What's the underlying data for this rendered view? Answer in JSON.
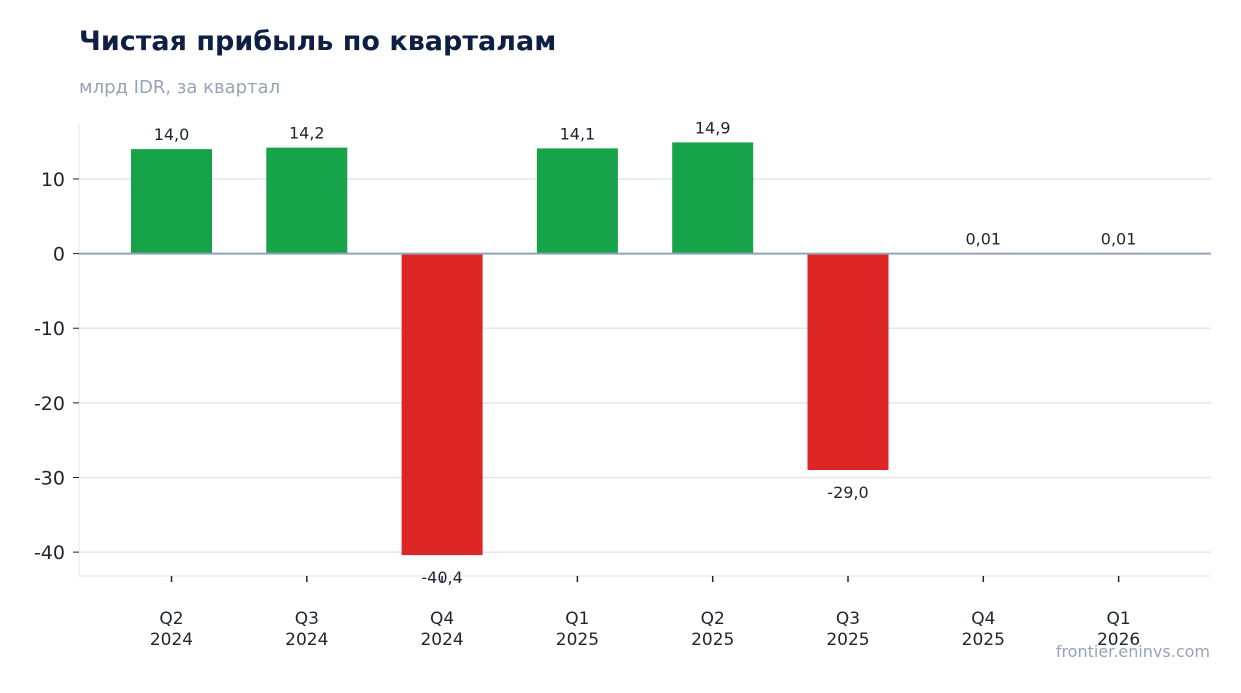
{
  "chart_data": {
    "type": "bar",
    "title": "Чистая прибыль по кварталам",
    "subtitle": "млрд IDR, за квартал",
    "categories": [
      [
        "Q2",
        "2024"
      ],
      [
        "Q3",
        "2024"
      ],
      [
        "Q4",
        "2024"
      ],
      [
        "Q1",
        "2025"
      ],
      [
        "Q2",
        "2025"
      ],
      [
        "Q3",
        "2025"
      ],
      [
        "Q4",
        "2025"
      ],
      [
        "Q1",
        "2026"
      ]
    ],
    "values": [
      14.0,
      14.2,
      -40.4,
      14.1,
      14.9,
      -29.0,
      0.01,
      0.01
    ],
    "data_labels": [
      "14,0",
      "14,2",
      "-40,4",
      "14,1",
      "14,9",
      "-29,0",
      "0,01",
      "0,01"
    ],
    "ylim": [
      -43.2,
      17.5
    ],
    "yticks": [
      10,
      0,
      -10,
      -20,
      -30,
      -40
    ],
    "ytick_labels": [
      "10",
      "0",
      "-10",
      "-20",
      "-30",
      "-40"
    ],
    "grid": true,
    "colors": {
      "positive": "#17a34a",
      "negative": "#dc2626",
      "grid": "#e2e6ee",
      "zero_line": "#94a3b8"
    }
  },
  "watermark": "frontier.eninvs.com"
}
